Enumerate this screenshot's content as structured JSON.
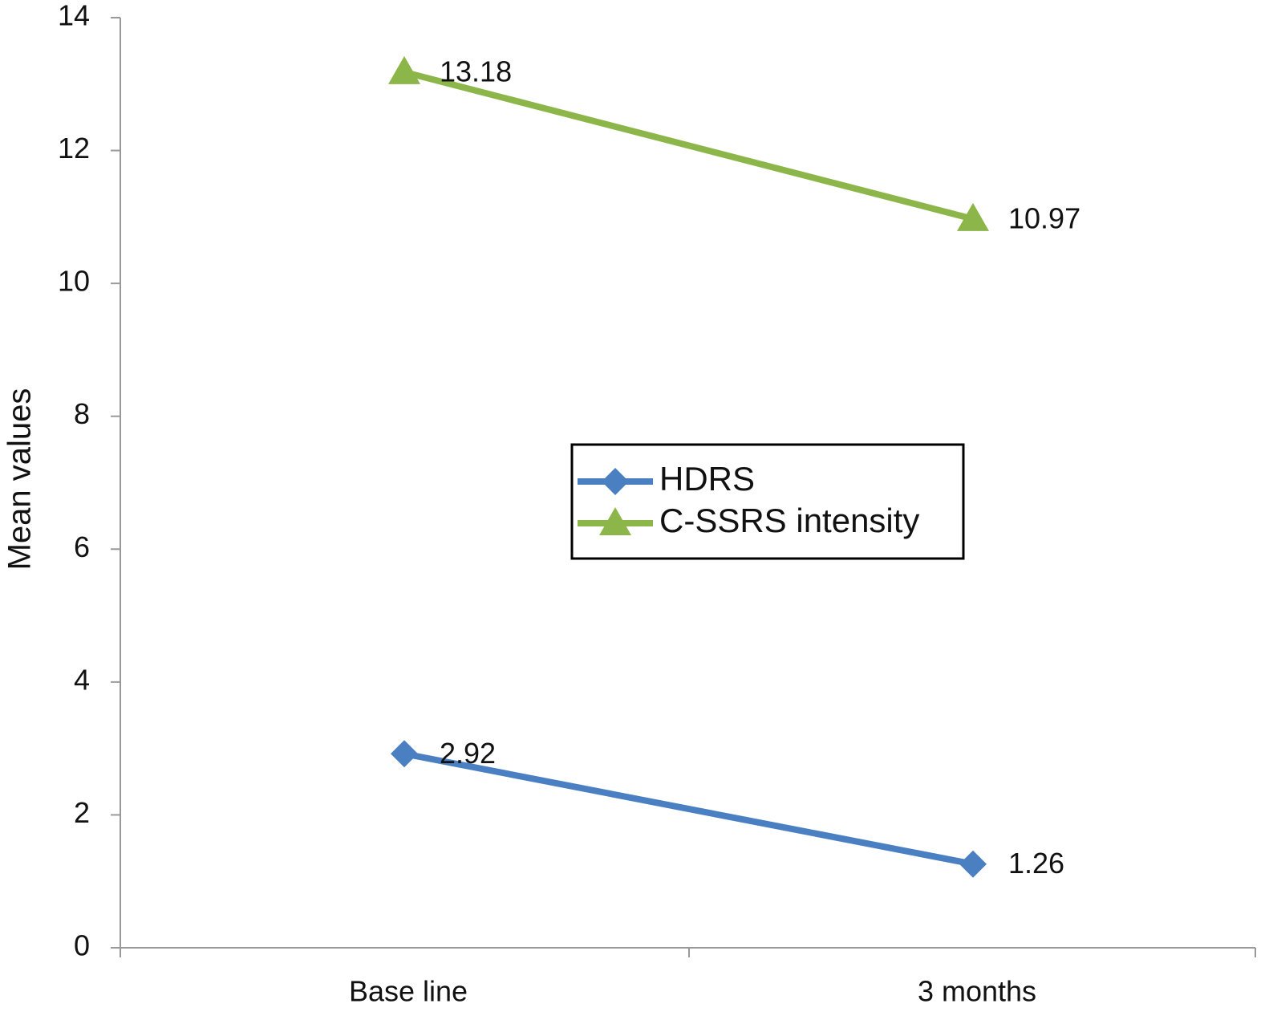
{
  "chart_data": {
    "type": "line",
    "categories": [
      "Base line",
      "3 months"
    ],
    "y_label": "Mean values",
    "ylim": [
      0,
      14
    ],
    "yticks": [
      0,
      2,
      4,
      6,
      8,
      10,
      12,
      14
    ],
    "grid": false,
    "legend": "center",
    "series": [
      {
        "name": "HDRS",
        "color": "#4a7fc1",
        "marker": "diamond",
        "values": [
          2.92,
          1.26
        ]
      },
      {
        "name": "C-SSRS intensity",
        "color": "#8db64a",
        "marker": "triangle",
        "values": [
          13.18,
          10.97
        ]
      }
    ]
  }
}
